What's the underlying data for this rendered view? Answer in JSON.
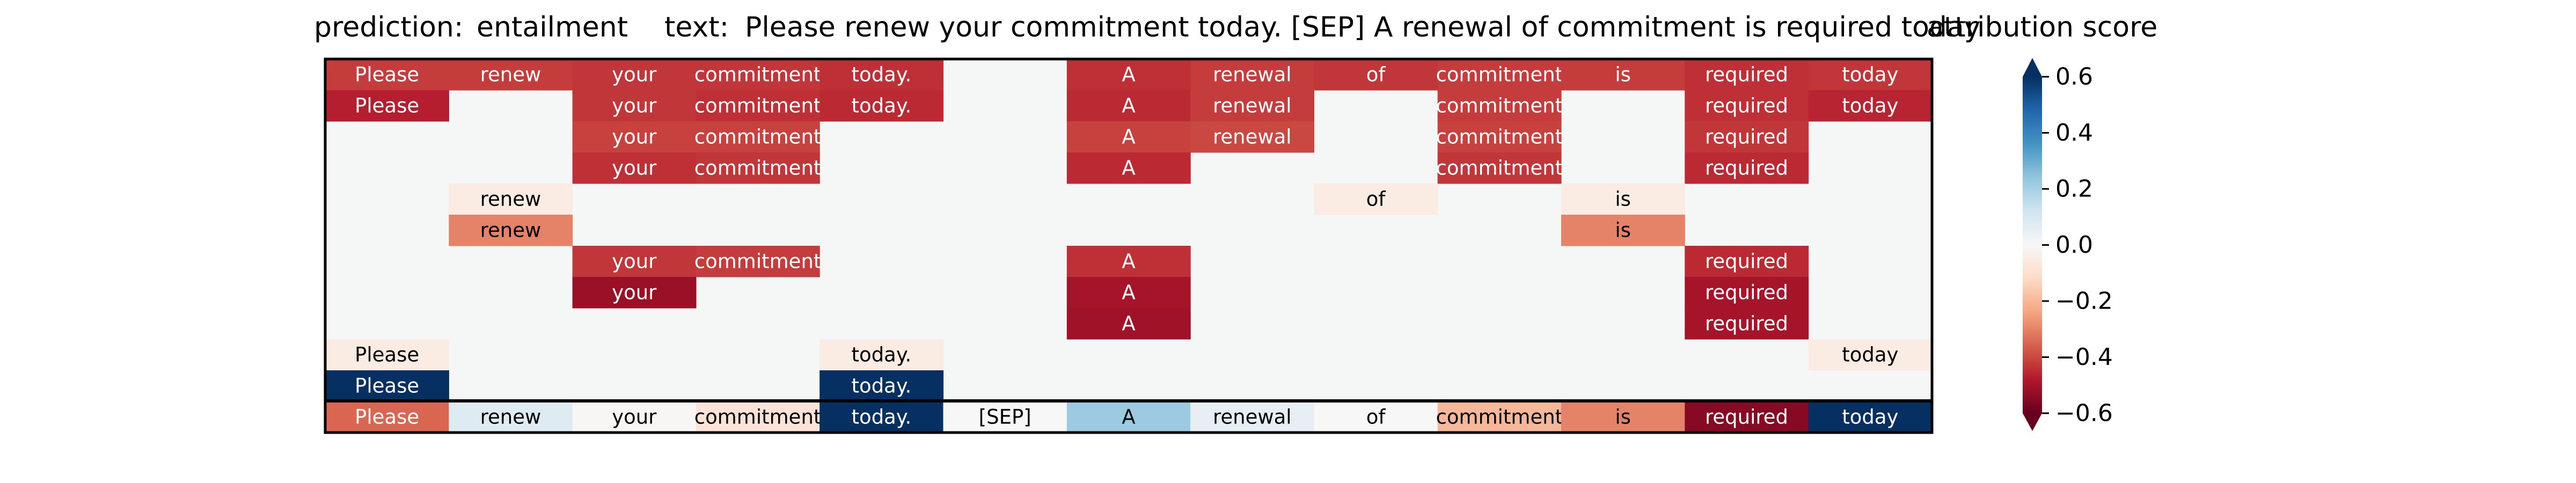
{
  "chart_data": {
    "type": "heatmap",
    "prediction_label": "prediction:",
    "prediction_value": "entailment",
    "text_label": "text:",
    "text_value": "Please renew your commitment today. [SEP] A renewal of commitment is required today",
    "colorbar_label": "attribution score",
    "colorbar_ticks": [
      "0.6",
      "0.4",
      "0.2",
      "0.0",
      "−0.2",
      "−0.4",
      "−0.6"
    ],
    "colorbar_tick_values": [
      0.6,
      0.4,
      0.2,
      0.0,
      -0.2,
      -0.4,
      -0.6
    ],
    "vmin": -0.6,
    "vmax": 0.6,
    "colormap": "RdBu",
    "tokens": [
      "Please",
      "renew",
      "your",
      "commitment",
      "today.",
      "[SEP]",
      "A",
      "renewal",
      "of",
      "commitment",
      "is",
      "required",
      "today"
    ],
    "rows": [
      [
        -0.42,
        -0.42,
        -0.43,
        -0.43,
        -0.44,
        null,
        -0.44,
        -0.42,
        -0.43,
        -0.42,
        -0.42,
        -0.44,
        -0.43
      ],
      [
        -0.47,
        null,
        -0.43,
        -0.44,
        -0.45,
        null,
        -0.45,
        -0.42,
        null,
        -0.42,
        null,
        -0.44,
        -0.46
      ],
      [
        null,
        null,
        -0.41,
        -0.41,
        null,
        null,
        -0.41,
        -0.4,
        null,
        -0.41,
        null,
        -0.43,
        null
      ],
      [
        null,
        null,
        -0.44,
        -0.43,
        null,
        null,
        -0.45,
        null,
        null,
        -0.43,
        null,
        -0.45,
        null
      ],
      [
        null,
        -0.05,
        null,
        null,
        null,
        null,
        null,
        null,
        -0.05,
        null,
        -0.05,
        null,
        null
      ],
      [
        null,
        -0.3,
        null,
        null,
        null,
        null,
        null,
        null,
        null,
        null,
        -0.3,
        null,
        null
      ],
      [
        null,
        null,
        -0.43,
        -0.42,
        null,
        null,
        -0.44,
        null,
        null,
        null,
        null,
        -0.45,
        null
      ],
      [
        null,
        null,
        -0.52,
        null,
        null,
        null,
        -0.5,
        null,
        null,
        null,
        null,
        -0.5,
        null
      ],
      [
        null,
        null,
        null,
        null,
        null,
        null,
        -0.51,
        null,
        null,
        null,
        null,
        -0.5,
        null
      ],
      [
        -0.05,
        null,
        null,
        null,
        -0.05,
        null,
        null,
        null,
        null,
        null,
        null,
        null,
        -0.05
      ],
      [
        0.6,
        null,
        null,
        null,
        0.6,
        null,
        null,
        null,
        null,
        null,
        null,
        null,
        null
      ],
      [
        -0.35,
        0.08,
        -0.005,
        -0.08,
        0.6,
        0.0,
        0.22,
        0.05,
        0.0,
        -0.2,
        -0.3,
        -0.55,
        0.6
      ]
    ]
  }
}
